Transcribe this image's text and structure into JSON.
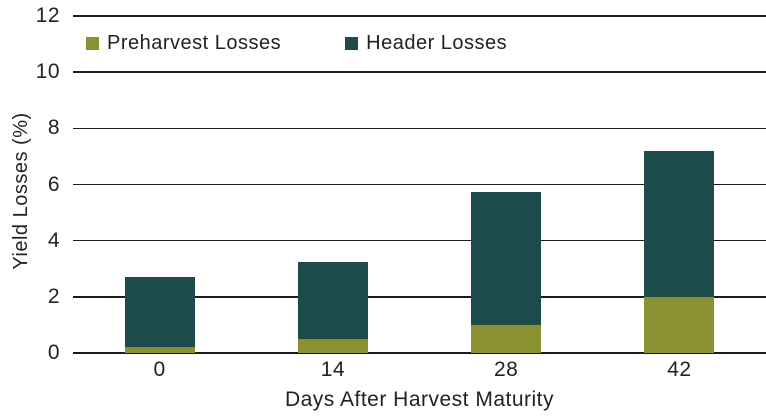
{
  "chart_data": {
    "type": "bar",
    "stacked": true,
    "categories": [
      "0",
      "14",
      "28",
      "42"
    ],
    "series": [
      {
        "name": "Preharvest Losses",
        "color": "#8A9130",
        "values": [
          0.2,
          0.5,
          1.0,
          2.0
        ]
      },
      {
        "name": "Header Losses",
        "color": "#1D4B4C",
        "values": [
          2.5,
          2.75,
          4.75,
          5.2
        ]
      }
    ],
    "totals": [
      2.7,
      3.25,
      5.75,
      7.2
    ],
    "title": "",
    "xlabel": "Days After Harvest Maturity",
    "ylabel": "Yield Losses (%)",
    "ylim": [
      0,
      12
    ],
    "yticks": [
      0,
      2,
      4,
      6,
      8,
      10,
      12
    ],
    "grid": true,
    "legend_position": "top-left-inside"
  },
  "colors": {
    "grid": "#1C1C1C",
    "text": "#222222",
    "background": "#FFFFFF"
  }
}
